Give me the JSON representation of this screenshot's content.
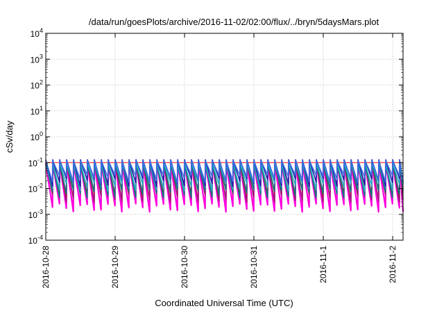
{
  "chart_data": {
    "type": "line",
    "title": "/data/run/goesPlots/archive/2016-11-02/02:00/flux/../bryn/5daysMars.plot",
    "xlabel": "Coordinated Universal Time (UTC)",
    "ylabel": "cSv/day",
    "yscale": "log",
    "ylim": [
      0.0001,
      10000
    ],
    "xlim_days": [
      0,
      5.15
    ],
    "grid": true,
    "yticks": [
      {
        "value": 0.0001,
        "base": "10",
        "exp": "-4"
      },
      {
        "value": 0.001,
        "base": "10",
        "exp": "-3"
      },
      {
        "value": 0.01,
        "base": "10",
        "exp": "-2"
      },
      {
        "value": 0.1,
        "base": "10",
        "exp": "-1"
      },
      {
        "value": 1,
        "base": "10",
        "exp": "0"
      },
      {
        "value": 10,
        "base": "10",
        "exp": "1"
      },
      {
        "value": 100,
        "base": "10",
        "exp": "2"
      },
      {
        "value": 1000,
        "base": "10",
        "exp": "3"
      },
      {
        "value": 10000,
        "base": "10",
        "exp": "4"
      }
    ],
    "xticks": [
      {
        "day": 0,
        "label": "2016-10-28"
      },
      {
        "day": 1,
        "label": "2016-10-29"
      },
      {
        "day": 2,
        "label": "2016-10-30"
      },
      {
        "day": 3,
        "label": "2016-10-31"
      },
      {
        "day": 4,
        "label": "2016-11-1"
      },
      {
        "day": 5,
        "label": "2016-11-2"
      }
    ],
    "reference_level": 0.1,
    "cycle_period_days": 0.1,
    "series": [
      {
        "color": "#ff00dd",
        "peak": 0.09,
        "low": 0.0019
      },
      {
        "color": "#9a1b6e",
        "peak": 0.1,
        "low": 0.0045
      },
      {
        "color": "#cc1111",
        "peak": 0.115,
        "low": 0.008
      },
      {
        "color": "#0a7a7a",
        "peak": 0.095,
        "low": 0.0065
      },
      {
        "color": "#1fb7c7",
        "peak": 0.1,
        "low": 0.012
      },
      {
        "color": "#2222aa",
        "peak": 0.13,
        "low": 0.018
      },
      {
        "color": "#3a6fe0",
        "peak": 0.12,
        "low": 0.025
      }
    ],
    "threshold_color": "#ff0000"
  }
}
